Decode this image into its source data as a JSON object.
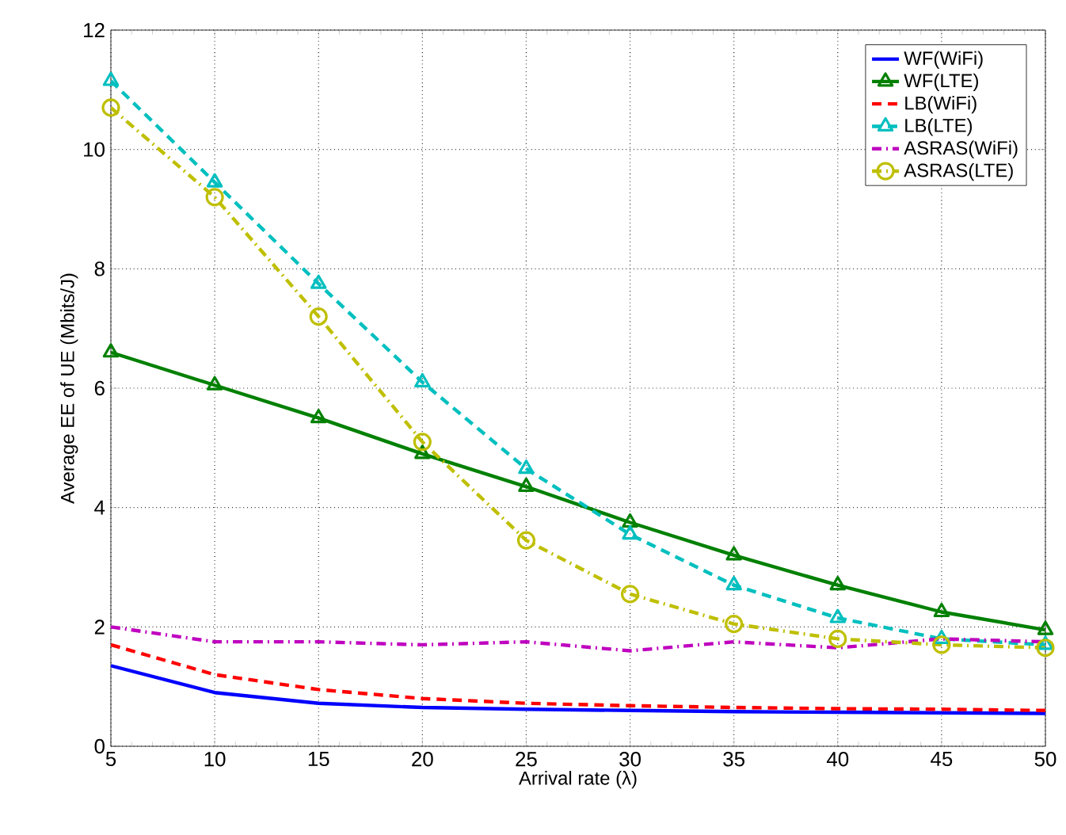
{
  "chart_data": {
    "type": "line",
    "xlabel": "Arrival rate (λ)",
    "ylabel": "Average EE of UE (Mbits/J)",
    "x": [
      5,
      10,
      15,
      20,
      25,
      30,
      35,
      40,
      45,
      50
    ],
    "xlim": [
      5,
      50
    ],
    "xticks": [
      5,
      10,
      15,
      20,
      25,
      30,
      35,
      40,
      45,
      50
    ],
    "ylim": [
      0,
      12
    ],
    "yticks": [
      0,
      2,
      4,
      6,
      8,
      10,
      12
    ],
    "grid": true,
    "legend": "top right",
    "series": [
      {
        "name": "WF(WiFi)",
        "color": "#0000ff",
        "line_style": "solid",
        "marker": "none",
        "values": [
          1.35,
          0.9,
          0.72,
          0.65,
          0.62,
          0.6,
          0.58,
          0.57,
          0.56,
          0.55
        ]
      },
      {
        "name": "WF(LTE)",
        "color": "#008000",
        "line_style": "solid",
        "marker": "triangle_down",
        "values": [
          6.6,
          6.05,
          5.5,
          4.9,
          4.35,
          3.75,
          3.2,
          2.7,
          2.25,
          1.95
        ]
      },
      {
        "name": "LB(WiFi)",
        "color": "#ff0000",
        "line_style": "dashed",
        "marker": "none",
        "values": [
          1.7,
          1.2,
          0.95,
          0.8,
          0.72,
          0.68,
          0.65,
          0.63,
          0.62,
          0.6
        ]
      },
      {
        "name": "LB(LTE)",
        "color": "#00bfbf",
        "line_style": "dashed",
        "marker": "triangle",
        "values": [
          11.15,
          9.45,
          7.75,
          6.1,
          4.65,
          3.55,
          2.7,
          2.15,
          1.8,
          1.7
        ]
      },
      {
        "name": "ASRAS(WiFi)",
        "color": "#bf00bf",
        "line_style": "dashdot",
        "marker": "none",
        "values": [
          2.0,
          1.75,
          1.75,
          1.7,
          1.75,
          1.6,
          1.75,
          1.65,
          1.8,
          1.75
        ]
      },
      {
        "name": "ASRAS(LTE)",
        "color": "#bfbf00",
        "line_style": "dashdot",
        "marker": "circle",
        "values": [
          10.7,
          9.2,
          7.2,
          5.1,
          3.45,
          2.55,
          2.05,
          1.8,
          1.7,
          1.65
        ]
      }
    ]
  }
}
